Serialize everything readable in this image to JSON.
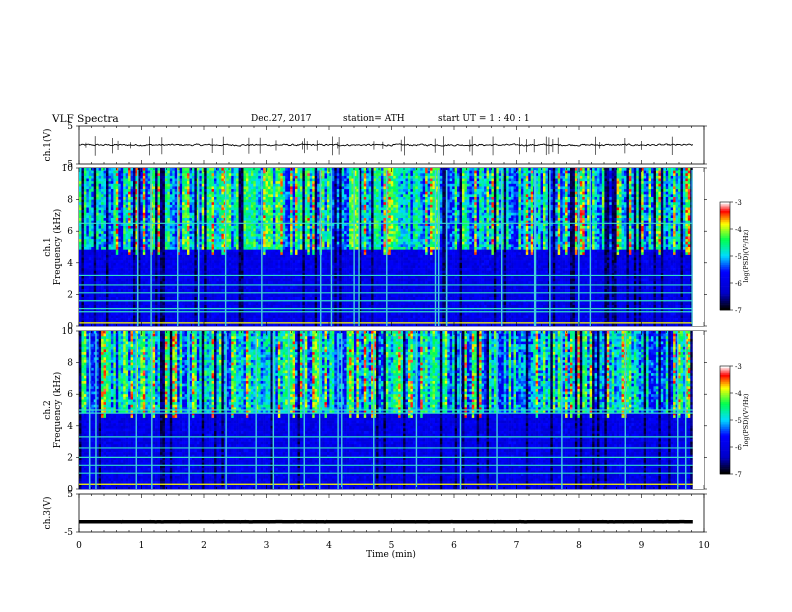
{
  "header": {
    "title": "VLF  Spectra",
    "date": "Dec.27, 2017",
    "station": "station= ATH",
    "start": "start  UT  =   1  : 40 : 1"
  },
  "chart_data": [
    {
      "type": "line",
      "panel": "ch1",
      "ylabel": "ch.1(V)",
      "ylim": [
        -5,
        5
      ],
      "yticks": [
        "5",
        "-5"
      ],
      "series": [
        {
          "baseline": 0,
          "noise_amplitude": 0.4
        }
      ],
      "color": "#000000"
    },
    {
      "type": "heatmap",
      "panel": "ch1-spectrogram",
      "ylabel": "ch.1\nFrequency  (kHz)",
      "ylim": [
        0,
        10
      ],
      "yticks": [
        "0",
        "2",
        "4",
        "6",
        "8",
        "10"
      ],
      "colorbar": {
        "label": "log(PSD)(V²/Hz)",
        "ticks": [
          "-3",
          "-4",
          "-5",
          "-6",
          "-7"
        ],
        "range": [
          -7,
          -3
        ],
        "colors": [
          "#000000",
          "#0000c8",
          "#00ffff",
          "#00ff00",
          "#ffff00",
          "#ff0000",
          "#ffffff"
        ]
      },
      "bands_khz": [
        0.2,
        0.9,
        1.1,
        1.6,
        2.1,
        2.6,
        3.2,
        6.5
      ]
    },
    {
      "type": "heatmap",
      "panel": "ch2-spectrogram",
      "ylabel": "ch.2\nFrequency  (kHz)",
      "ylim": [
        0,
        10
      ],
      "yticks": [
        "0",
        "2",
        "4",
        "6",
        "8",
        "10"
      ],
      "colorbar": {
        "label": "log(PSD)(V²/Hz)",
        "ticks": [
          "-3",
          "-4",
          "-5",
          "-6",
          "-7"
        ],
        "range": [
          -7,
          -3
        ],
        "colors": [
          "#000000",
          "#0000c8",
          "#00ffff",
          "#00ff00",
          "#ffff00",
          "#ff0000",
          "#ffffff"
        ]
      },
      "bands_khz": [
        0.3,
        1.0,
        1.5,
        2.0,
        2.6,
        3.3,
        4.8,
        5.0
      ]
    },
    {
      "type": "line",
      "panel": "ch3",
      "ylabel": "ch.3(V)",
      "ylim": [
        -5,
        5
      ],
      "yticks": [
        "5",
        "-5"
      ],
      "series": [
        {
          "baseline": -2.3,
          "noise_amplitude": 0.05
        }
      ],
      "color": "#000000"
    }
  ],
  "xaxis": {
    "label": "Time  (min)",
    "ticks": [
      "0",
      "1",
      "2",
      "3",
      "4",
      "5",
      "6",
      "7",
      "8",
      "9",
      "10"
    ],
    "range": [
      0,
      10
    ],
    "data_end": 9.82
  }
}
